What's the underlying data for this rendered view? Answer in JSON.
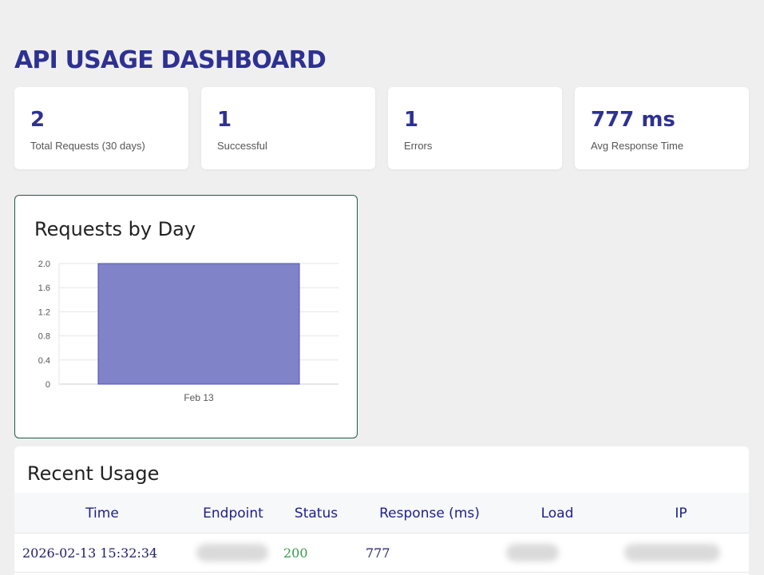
{
  "page": {
    "title": "API USAGE DASHBOARD"
  },
  "stats": [
    {
      "value": "2",
      "label": "Total Requests (30 days)"
    },
    {
      "value": "1",
      "label": "Successful"
    },
    {
      "value": "1",
      "label": "Errors"
    },
    {
      "value": "777 ms",
      "label": "Avg Response Time"
    }
  ],
  "chart_data": {
    "type": "bar",
    "title": "Requests by Day",
    "categories": [
      "Feb 13"
    ],
    "values": [
      2
    ],
    "ylim": [
      0,
      2
    ],
    "yticks": [
      "0",
      "0.4",
      "0.8",
      "1.2",
      "1.6",
      "2.0"
    ],
    "bar_color": "#8183c9",
    "grid": true
  },
  "recent_usage": {
    "title": "Recent Usage",
    "columns": [
      "Time",
      "Endpoint",
      "Status",
      "Response (ms)",
      "Load",
      "IP"
    ],
    "rows": [
      {
        "time": "2026-02-13 15:32:34",
        "status": "200",
        "response": "777"
      }
    ]
  },
  "colors": {
    "accent": "#2e3192",
    "success": "#3a9a4a"
  }
}
